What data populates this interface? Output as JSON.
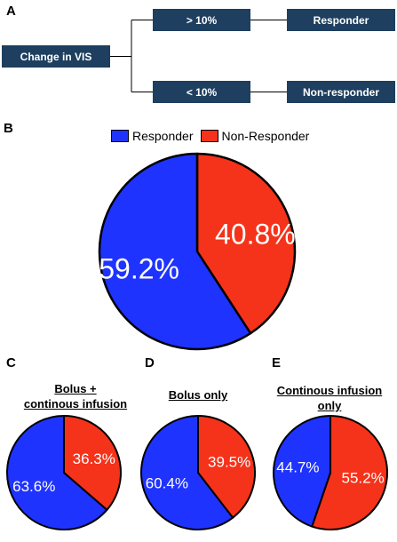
{
  "panels": {
    "a": "A",
    "b": "B",
    "c": "C",
    "d": "D",
    "e": "E"
  },
  "flowchart": {
    "root": "Change in VIS",
    "branch_high": "> 10%",
    "branch_low": "< 10%",
    "outcome_high": "Responder",
    "outcome_low": "Non-responder",
    "box_color": "#1e3f5f"
  },
  "legend": {
    "responder": "Responder",
    "non_responder": "Non-Responder"
  },
  "colors": {
    "responder": "#1f33ff",
    "non_responder": "#f5321a"
  },
  "chart_data": [
    {
      "type": "pie",
      "panel": "B",
      "title": "",
      "slices": [
        {
          "label": "Responder",
          "value": 59.2,
          "text": "59.2%",
          "color": "#1f33ff"
        },
        {
          "label": "Non-Responder",
          "value": 40.8,
          "text": "40.8%",
          "color": "#f5321a"
        }
      ]
    },
    {
      "type": "pie",
      "panel": "C",
      "title": "Bolus + continous infusion",
      "title_lines": [
        "Bolus +",
        "continous infusion"
      ],
      "slices": [
        {
          "label": "Responder",
          "value": 63.6,
          "text": "63.6%",
          "color": "#1f33ff"
        },
        {
          "label": "Non-Responder",
          "value": 36.3,
          "text": "36.3%",
          "color": "#f5321a"
        }
      ]
    },
    {
      "type": "pie",
      "panel": "D",
      "title": "Bolus only",
      "title_lines": [
        "Bolus only"
      ],
      "slices": [
        {
          "label": "Responder",
          "value": 60.4,
          "text": "60.4%",
          "color": "#1f33ff"
        },
        {
          "label": "Non-Responder",
          "value": 39.5,
          "text": "39.5%",
          "color": "#f5321a"
        }
      ]
    },
    {
      "type": "pie",
      "panel": "E",
      "title": "Continous infusion only",
      "title_lines": [
        "Continous infusion",
        "only"
      ],
      "slices": [
        {
          "label": "Responder",
          "value": 44.7,
          "text": "44.7%",
          "color": "#1f33ff"
        },
        {
          "label": "Non-Responder",
          "value": 55.2,
          "text": "55.2%",
          "color": "#f5321a"
        }
      ]
    }
  ]
}
